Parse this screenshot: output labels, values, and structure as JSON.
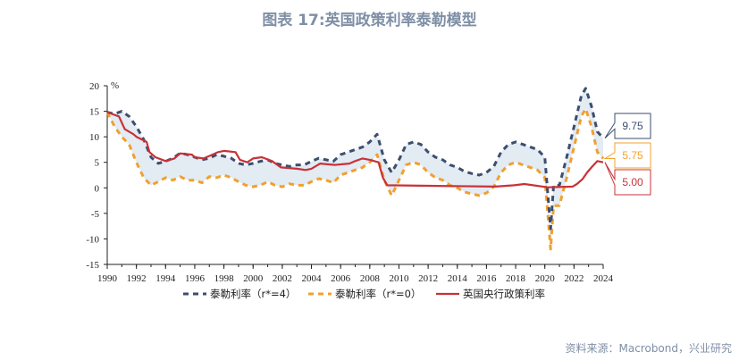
{
  "title": "图表 17:英国政策利率泰勒模型",
  "source": "资料来源：Macrobond，兴业研究",
  "colors": {
    "r4": "#3d4e6e",
    "r0": "#f0a030",
    "boe": "#c83238",
    "band": "#e3ebf3",
    "title": "#7f8fa6"
  },
  "chart_data": {
    "type": "line",
    "unit_label": "%",
    "xlim": [
      1990,
      2024
    ],
    "ylim": [
      -15,
      20
    ],
    "x_ticks": [
      1990,
      1992,
      1994,
      1996,
      1998,
      2000,
      2002,
      2004,
      2006,
      2008,
      2010,
      2012,
      2014,
      2016,
      2018,
      2020,
      2022,
      2024
    ],
    "y_ticks": [
      20,
      15,
      10,
      5,
      0,
      -5,
      -10,
      -15
    ],
    "series": [
      {
        "name": "泰勒利率（r*=4）",
        "key": "r4",
        "style": "dashed",
        "points": [
          [
            1990.0,
            14.8
          ],
          [
            1990.5,
            14.5
          ],
          [
            1991.0,
            15.0
          ],
          [
            1991.5,
            14.0
          ],
          [
            1992.0,
            12.0
          ],
          [
            1992.5,
            9.5
          ],
          [
            1993.0,
            6.0
          ],
          [
            1993.5,
            4.8
          ],
          [
            1994.0,
            5.2
          ],
          [
            1994.5,
            5.8
          ],
          [
            1995.0,
            6.8
          ],
          [
            1995.5,
            6.5
          ],
          [
            1996.0,
            6.0
          ],
          [
            1996.5,
            5.5
          ],
          [
            1997.0,
            5.8
          ],
          [
            1997.5,
            6.5
          ],
          [
            1998.0,
            6.2
          ],
          [
            1998.5,
            5.8
          ],
          [
            1999.0,
            4.8
          ],
          [
            1999.5,
            4.5
          ],
          [
            2000.0,
            4.8
          ],
          [
            2000.5,
            5.2
          ],
          [
            2001.0,
            5.5
          ],
          [
            2001.5,
            4.8
          ],
          [
            2002.0,
            4.5
          ],
          [
            2002.5,
            4.2
          ],
          [
            2003.0,
            4.5
          ],
          [
            2003.5,
            4.5
          ],
          [
            2004.0,
            5.2
          ],
          [
            2004.5,
            5.8
          ],
          [
            2005.0,
            5.5
          ],
          [
            2005.5,
            5.2
          ],
          [
            2006.0,
            6.5
          ],
          [
            2006.5,
            7.0
          ],
          [
            2007.0,
            7.5
          ],
          [
            2007.5,
            8.0
          ],
          [
            2008.0,
            9.0
          ],
          [
            2008.5,
            10.5
          ],
          [
            2009.0,
            5.5
          ],
          [
            2009.5,
            3.0
          ],
          [
            2010.0,
            5.5
          ],
          [
            2010.5,
            8.5
          ],
          [
            2011.0,
            9.0
          ],
          [
            2011.5,
            8.5
          ],
          [
            2012.0,
            7.0
          ],
          [
            2012.5,
            6.0
          ],
          [
            2013.0,
            5.5
          ],
          [
            2013.5,
            4.5
          ],
          [
            2014.0,
            4.0
          ],
          [
            2014.5,
            3.2
          ],
          [
            2015.0,
            2.8
          ],
          [
            2015.5,
            2.5
          ],
          [
            2016.0,
            3.0
          ],
          [
            2016.5,
            4.2
          ],
          [
            2017.0,
            7.0
          ],
          [
            2017.5,
            8.5
          ],
          [
            2018.0,
            9.0
          ],
          [
            2018.5,
            8.5
          ],
          [
            2019.0,
            8.0
          ],
          [
            2019.5,
            7.5
          ],
          [
            2020.0,
            6.0
          ],
          [
            2020.4,
            -8.0
          ],
          [
            2020.6,
            0.5
          ],
          [
            2021.0,
            0.5
          ],
          [
            2021.5,
            6.0
          ],
          [
            2022.0,
            12.0
          ],
          [
            2022.5,
            18.0
          ],
          [
            2022.8,
            19.5
          ],
          [
            2023.2,
            16.0
          ],
          [
            2023.6,
            11.0
          ],
          [
            2024.0,
            9.75
          ]
        ]
      },
      {
        "name": "泰勒利率（r*=0）",
        "key": "r0",
        "style": "dashed",
        "points": [
          [
            1990.0,
            14.8
          ],
          [
            1990.5,
            12.0
          ],
          [
            1991.0,
            10.0
          ],
          [
            1991.5,
            8.5
          ],
          [
            1992.0,
            5.0
          ],
          [
            1992.5,
            2.0
          ],
          [
            1993.0,
            0.5
          ],
          [
            1993.5,
            1.2
          ],
          [
            1994.0,
            2.0
          ],
          [
            1994.5,
            1.5
          ],
          [
            1995.0,
            2.2
          ],
          [
            1995.5,
            1.5
          ],
          [
            1996.0,
            1.5
          ],
          [
            1996.5,
            1.0
          ],
          [
            1997.0,
            2.2
          ],
          [
            1997.5,
            2.0
          ],
          [
            1998.0,
            2.5
          ],
          [
            1998.5,
            2.0
          ],
          [
            1999.0,
            1.2
          ],
          [
            1999.5,
            0.5
          ],
          [
            2000.0,
            0.2
          ],
          [
            2000.5,
            0.5
          ],
          [
            2001.0,
            1.2
          ],
          [
            2001.5,
            0.5
          ],
          [
            2002.0,
            0.2
          ],
          [
            2002.5,
            0.8
          ],
          [
            2003.0,
            0.5
          ],
          [
            2003.5,
            0.5
          ],
          [
            2004.0,
            1.2
          ],
          [
            2004.5,
            1.8
          ],
          [
            2005.0,
            1.5
          ],
          [
            2005.5,
            1.0
          ],
          [
            2006.0,
            2.5
          ],
          [
            2006.5,
            3.0
          ],
          [
            2007.0,
            3.5
          ],
          [
            2007.5,
            4.0
          ],
          [
            2008.0,
            5.0
          ],
          [
            2008.5,
            6.5
          ],
          [
            2009.0,
            1.5
          ],
          [
            2009.5,
            -1.5
          ],
          [
            2010.0,
            1.5
          ],
          [
            2010.5,
            4.5
          ],
          [
            2011.0,
            5.0
          ],
          [
            2011.5,
            4.5
          ],
          [
            2012.0,
            3.0
          ],
          [
            2012.5,
            2.0
          ],
          [
            2013.0,
            1.5
          ],
          [
            2013.5,
            0.5
          ],
          [
            2014.0,
            0.0
          ],
          [
            2014.5,
            -0.8
          ],
          [
            2015.0,
            -1.2
          ],
          [
            2015.5,
            -1.5
          ],
          [
            2016.0,
            -1.0
          ],
          [
            2016.5,
            0.2
          ],
          [
            2017.0,
            3.0
          ],
          [
            2017.5,
            4.5
          ],
          [
            2018.0,
            5.0
          ],
          [
            2018.5,
            4.5
          ],
          [
            2019.0,
            4.0
          ],
          [
            2019.5,
            3.5
          ],
          [
            2020.0,
            2.0
          ],
          [
            2020.4,
            -12.0
          ],
          [
            2020.6,
            -3.5
          ],
          [
            2021.0,
            -3.5
          ],
          [
            2021.5,
            2.0
          ],
          [
            2022.0,
            8.0
          ],
          [
            2022.5,
            14.0
          ],
          [
            2022.8,
            15.5
          ],
          [
            2023.2,
            12.0
          ],
          [
            2023.6,
            7.0
          ],
          [
            2024.0,
            5.75
          ]
        ]
      },
      {
        "name": "英国央行政策利率",
        "key": "boe",
        "style": "solid",
        "points": [
          [
            1990.0,
            14.8
          ],
          [
            1990.8,
            14.0
          ],
          [
            1991.2,
            11.5
          ],
          [
            1991.8,
            10.5
          ],
          [
            1992.0,
            10.0
          ],
          [
            1992.7,
            9.0
          ],
          [
            1992.9,
            7.0
          ],
          [
            1993.3,
            6.0
          ],
          [
            1994.0,
            5.25
          ],
          [
            1994.6,
            5.75
          ],
          [
            1995.0,
            6.75
          ],
          [
            1995.8,
            6.5
          ],
          [
            1996.0,
            6.0
          ],
          [
            1996.6,
            5.75
          ],
          [
            1997.0,
            6.25
          ],
          [
            1997.6,
            7.0
          ],
          [
            1998.0,
            7.25
          ],
          [
            1998.8,
            7.0
          ],
          [
            1999.1,
            5.5
          ],
          [
            1999.6,
            5.0
          ],
          [
            2000.0,
            5.75
          ],
          [
            2000.6,
            6.0
          ],
          [
            2001.3,
            5.25
          ],
          [
            2001.9,
            4.0
          ],
          [
            2003.0,
            3.75
          ],
          [
            2003.6,
            3.5
          ],
          [
            2004.0,
            3.75
          ],
          [
            2004.6,
            4.75
          ],
          [
            2005.6,
            4.5
          ],
          [
            2006.6,
            4.75
          ],
          [
            2007.0,
            5.25
          ],
          [
            2007.5,
            5.75
          ],
          [
            2008.0,
            5.5
          ],
          [
            2008.6,
            5.0
          ],
          [
            2008.9,
            2.0
          ],
          [
            2009.2,
            0.5
          ],
          [
            2016.6,
            0.25
          ],
          [
            2017.9,
            0.5
          ],
          [
            2018.6,
            0.75
          ],
          [
            2020.2,
            0.1
          ],
          [
            2021.9,
            0.25
          ],
          [
            2022.2,
            0.75
          ],
          [
            2022.6,
            1.75
          ],
          [
            2022.9,
            3.0
          ],
          [
            2023.2,
            4.0
          ],
          [
            2023.6,
            5.25
          ],
          [
            2024.0,
            5.0
          ]
        ]
      }
    ],
    "callouts": [
      {
        "key": "r4",
        "text": "9.75"
      },
      {
        "key": "r0",
        "text": "5.75"
      },
      {
        "key": "boe",
        "text": "5.00"
      }
    ],
    "legend": [
      {
        "key": "r4",
        "label": "泰勒利率（r*=4）"
      },
      {
        "key": "r0",
        "label": "泰勒利率（r*=0）"
      },
      {
        "key": "boe",
        "label": "英国央行政策利率"
      }
    ]
  }
}
